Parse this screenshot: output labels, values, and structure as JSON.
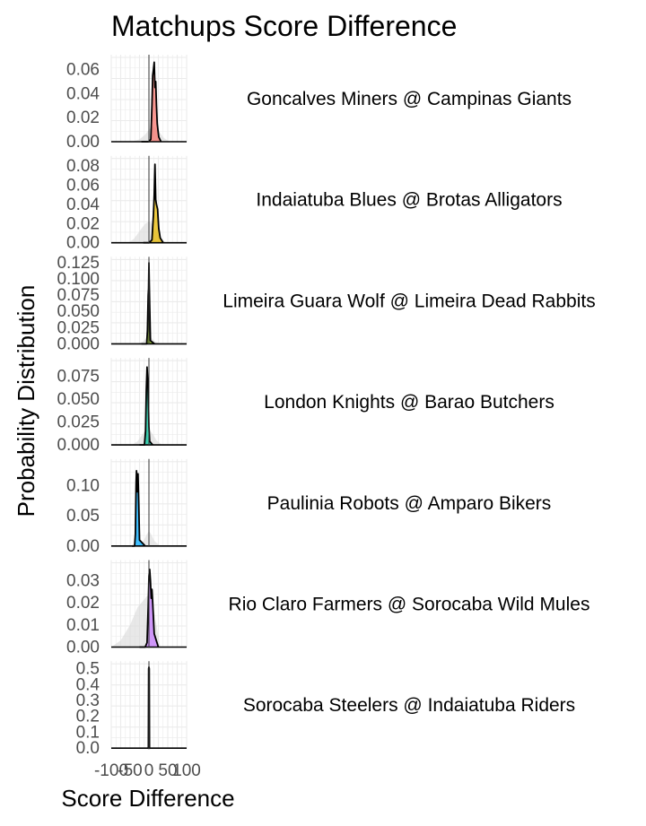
{
  "chart_data": {
    "type": "area",
    "title": "Matchups Score Difference",
    "xlabel": "Score Difference",
    "ylabel": "Probability Distribution",
    "xlim": [
      -100,
      100
    ],
    "x_ticks": [
      "-100",
      "-50",
      "0",
      "50",
      "100"
    ],
    "grid": true,
    "reference_line_x": 0,
    "panels": [
      {
        "label": "Goncalves Miners @ Campinas Giants",
        "color": "#f8766d",
        "ylim": [
          0,
          0.07
        ],
        "y_ticks": [
          "0.00",
          "0.02",
          "0.04",
          "0.06"
        ],
        "density_x": [
          -20,
          0,
          5,
          8,
          10,
          12,
          14,
          16,
          18,
          20,
          22,
          26,
          32
        ],
        "density_y": [
          0,
          0,
          0.002,
          0.03,
          0.055,
          0.06,
          0.066,
          0.045,
          0.05,
          0.03,
          0.015,
          0.004,
          0
        ],
        "shadow_x": [
          -45,
          -25,
          -10,
          0,
          10,
          20,
          30,
          40,
          55
        ],
        "shadow_y": [
          0,
          0.002,
          0.006,
          0.01,
          0.013,
          0.011,
          0.007,
          0.003,
          0
        ]
      },
      {
        "label": "Indaiatuba Blues @ Brotas Alligators",
        "color": "#e7b800",
        "ylim": [
          0,
          0.088
        ],
        "y_ticks": [
          "0.00",
          "0.02",
          "0.04",
          "0.06",
          "0.08"
        ],
        "density_x": [
          -15,
          0,
          8,
          12,
          14,
          16,
          18,
          20,
          23,
          26,
          30,
          38
        ],
        "density_y": [
          0,
          0,
          0.003,
          0.03,
          0.05,
          0.082,
          0.045,
          0.04,
          0.035,
          0.015,
          0.005,
          0
        ],
        "shadow_x": [
          -55,
          -40,
          -25,
          -10,
          0,
          10,
          20,
          30,
          45
        ],
        "shadow_y": [
          0,
          0.004,
          0.012,
          0.02,
          0.022,
          0.02,
          0.012,
          0.005,
          0
        ]
      },
      {
        "label": "Limeira Guara Wolf @ Limeira Dead Rabbits",
        "color": "#7cae00",
        "ylim": [
          0,
          0.13
        ],
        "y_ticks": [
          "0.000",
          "0.025",
          "0.050",
          "0.075",
          "0.100",
          "0.125"
        ],
        "density_x": [
          -20,
          -6,
          -4,
          -2,
          -1,
          0,
          1,
          2,
          4,
          15
        ],
        "density_y": [
          0,
          0,
          0.02,
          0.075,
          0.085,
          0.125,
          0.09,
          0.06,
          0.005,
          0
        ],
        "shadow_x": [
          -30,
          -15,
          -5,
          0,
          5,
          15,
          30
        ],
        "shadow_y": [
          0,
          0.004,
          0.01,
          0.012,
          0.01,
          0.004,
          0
        ]
      },
      {
        "label": "London Knights @ Barao Butchers",
        "color": "#00c19a",
        "ylim": [
          0,
          0.092
        ],
        "y_ticks": [
          "0.000",
          "0.025",
          "0.050",
          "0.075"
        ],
        "density_x": [
          -25,
          -12,
          -9,
          -7,
          -5,
          -3,
          -1,
          0,
          2,
          10
        ],
        "density_y": [
          0,
          0,
          0.015,
          0.06,
          0.085,
          0.07,
          0.04,
          0.02,
          0.004,
          0
        ],
        "shadow_x": [
          -45,
          -30,
          -20,
          -10,
          0,
          10,
          20,
          35
        ],
        "shadow_y": [
          0,
          0.004,
          0.01,
          0.016,
          0.017,
          0.012,
          0.005,
          0
        ]
      },
      {
        "label": "Paulinia Robots @ Amparo Bikers",
        "color": "#00a9ff",
        "ylim": [
          0,
          0.14
        ],
        "y_ticks": [
          "0.00",
          "0.05",
          "0.10"
        ],
        "density_x": [
          -45,
          -38,
          -36,
          -34,
          -33,
          -31,
          -29,
          -27,
          -25,
          -10
        ],
        "density_y": [
          0,
          0,
          0.02,
          0.105,
          0.125,
          0.09,
          0.12,
          0.07,
          0.01,
          0
        ],
        "shadow_x": [
          -30,
          -15,
          -5,
          0,
          5,
          15,
          30
        ],
        "shadow_y": [
          0,
          0.008,
          0.02,
          0.025,
          0.02,
          0.008,
          0
        ]
      },
      {
        "label": "Rio Claro Farmers @ Sorocaba Wild Mules",
        "color": "#c77cff",
        "ylim": [
          0,
          0.038
        ],
        "y_ticks": [
          "0.00",
          "0.01",
          "0.02",
          "0.03"
        ],
        "density_x": [
          -25,
          -10,
          -5,
          -2,
          0,
          2,
          4,
          6,
          8,
          10,
          14,
          25
        ],
        "density_y": [
          0,
          0,
          0.002,
          0.018,
          0.032,
          0.035,
          0.03,
          0.022,
          0.026,
          0.02,
          0.006,
          0
        ],
        "shadow_x": [
          -100,
          -75,
          -50,
          -30,
          -10,
          0,
          10,
          20,
          30
        ],
        "shadow_y": [
          0,
          0.003,
          0.01,
          0.018,
          0.022,
          0.024,
          0.02,
          0.01,
          0
        ]
      },
      {
        "label": "Sorocaba Steelers @ Indaiatuba Riders",
        "color": "#ff61cc",
        "ylim": [
          0,
          0.53
        ],
        "y_ticks": [
          "0.0",
          "0.1",
          "0.2",
          "0.3",
          "0.4",
          "0.5"
        ],
        "density_x": [
          -3,
          -1.5,
          -0.8,
          0,
          0.8,
          1.5,
          3
        ],
        "density_y": [
          0,
          0,
          0.5,
          0.51,
          0.5,
          0,
          0
        ],
        "shadow_x": [
          -3,
          -1,
          0,
          1,
          3
        ],
        "shadow_y": [
          0,
          0.01,
          0.02,
          0.01,
          0
        ]
      }
    ]
  }
}
